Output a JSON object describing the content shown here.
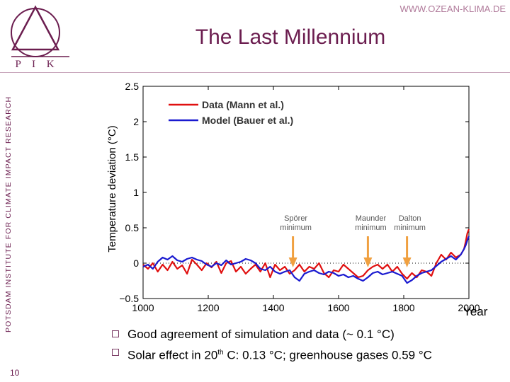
{
  "header": {
    "url": "WWW.OZEAN-KLIMA.DE",
    "title": "The Last Millennium",
    "logo_text": "P I K",
    "sidebar_text": "POTSDAM INSTITUTE FOR CLIMATE IMPACT RESEARCH"
  },
  "colors": {
    "brand": "#6b1d4f",
    "data_series": "#e01010",
    "model_series": "#1a1ad0",
    "arrow": "#f0a040"
  },
  "chart_data": {
    "type": "line",
    "title": "",
    "xlabel": "Year",
    "ylabel": "Temperature deviation (°C)",
    "xlim": [
      1000,
      2000
    ],
    "ylim": [
      -0.5,
      2.5
    ],
    "x_ticks": [
      "1000",
      "1200",
      "1400",
      "1600",
      "1800",
      "2000"
    ],
    "y_ticks": [
      "−0.5",
      "0",
      "0.5",
      "1",
      "1.5",
      "2",
      "2.5"
    ],
    "legend_position": "top-left",
    "series": [
      {
        "name": "Data (Mann et al.)",
        "color": "#e01010",
        "x": [
          1000,
          1015,
          1030,
          1045,
          1060,
          1075,
          1090,
          1105,
          1120,
          1135,
          1150,
          1165,
          1180,
          1195,
          1210,
          1225,
          1240,
          1255,
          1270,
          1285,
          1300,
          1315,
          1330,
          1345,
          1360,
          1375,
          1390,
          1405,
          1420,
          1435,
          1450,
          1465,
          1480,
          1495,
          1510,
          1525,
          1540,
          1555,
          1570,
          1585,
          1600,
          1615,
          1630,
          1645,
          1660,
          1675,
          1690,
          1705,
          1720,
          1735,
          1750,
          1765,
          1780,
          1795,
          1810,
          1825,
          1840,
          1855,
          1870,
          1885,
          1900,
          1915,
          1930,
          1945,
          1960,
          1975,
          1985,
          1990,
          1995,
          2000
        ],
        "y": [
          -0.02,
          -0.08,
          0.0,
          -0.12,
          -0.02,
          -0.1,
          0.02,
          -0.08,
          -0.03,
          -0.15,
          0.05,
          -0.02,
          -0.1,
          0.0,
          -0.06,
          0.02,
          -0.14,
          0.0,
          0.03,
          -0.12,
          -0.05,
          -0.15,
          -0.08,
          -0.02,
          -0.12,
          0.0,
          -0.2,
          -0.02,
          -0.1,
          -0.05,
          -0.15,
          -0.1,
          -0.02,
          -0.12,
          -0.05,
          -0.08,
          0.0,
          -0.14,
          -0.2,
          -0.1,
          -0.12,
          -0.02,
          -0.08,
          -0.14,
          -0.2,
          -0.18,
          -0.1,
          -0.05,
          -0.02,
          -0.08,
          -0.02,
          -0.12,
          -0.05,
          -0.15,
          -0.22,
          -0.14,
          -0.2,
          -0.1,
          -0.12,
          -0.18,
          0.0,
          0.12,
          0.05,
          0.15,
          0.08,
          0.12,
          0.2,
          0.3,
          0.42,
          0.48
        ]
      },
      {
        "name": "Model (Bauer et al.)",
        "color": "#1a1ad0",
        "x": [
          1000,
          1015,
          1030,
          1045,
          1060,
          1075,
          1090,
          1105,
          1120,
          1135,
          1150,
          1165,
          1180,
          1195,
          1210,
          1225,
          1240,
          1255,
          1270,
          1285,
          1300,
          1315,
          1330,
          1345,
          1360,
          1375,
          1390,
          1405,
          1420,
          1435,
          1450,
          1465,
          1480,
          1495,
          1510,
          1525,
          1540,
          1555,
          1570,
          1585,
          1600,
          1615,
          1630,
          1645,
          1660,
          1675,
          1690,
          1705,
          1720,
          1735,
          1750,
          1765,
          1780,
          1795,
          1810,
          1825,
          1840,
          1855,
          1870,
          1885,
          1900,
          1915,
          1930,
          1945,
          1960,
          1975,
          1985,
          1990,
          1995,
          2000
        ],
        "y": [
          -0.05,
          -0.02,
          -0.08,
          0.02,
          0.08,
          0.05,
          0.1,
          0.04,
          0.02,
          0.06,
          0.08,
          0.05,
          0.03,
          -0.02,
          -0.05,
          0.0,
          -0.03,
          0.04,
          -0.02,
          0.0,
          0.02,
          0.06,
          0.04,
          0.0,
          -0.08,
          -0.1,
          -0.05,
          -0.12,
          -0.15,
          -0.12,
          -0.1,
          -0.2,
          -0.25,
          -0.15,
          -0.12,
          -0.1,
          -0.14,
          -0.16,
          -0.12,
          -0.14,
          -0.18,
          -0.16,
          -0.2,
          -0.18,
          -0.22,
          -0.25,
          -0.2,
          -0.14,
          -0.12,
          -0.16,
          -0.14,
          -0.12,
          -0.15,
          -0.18,
          -0.28,
          -0.24,
          -0.18,
          -0.14,
          -0.12,
          -0.1,
          -0.04,
          0.02,
          0.06,
          0.1,
          0.05,
          0.12,
          0.2,
          0.25,
          0.32,
          0.38
        ]
      }
    ],
    "annotations": [
      {
        "text_lines": [
          "Spörer",
          "minimum"
        ],
        "year": 1460
      },
      {
        "text_lines": [
          "Maunder",
          "minimum"
        ],
        "year": 1690
      },
      {
        "text_lines": [
          "Dalton",
          "minimum"
        ],
        "year": 1810
      }
    ]
  },
  "bullets": [
    "Good agreement of simulation and data (~ 0.1 °C)",
    {
      "before": "Solar effect in 20",
      "sup": "th",
      "after": " C: 0.13 °C; greenhouse gases 0.59 °C"
    }
  ],
  "footer": {
    "page_number": "10"
  }
}
